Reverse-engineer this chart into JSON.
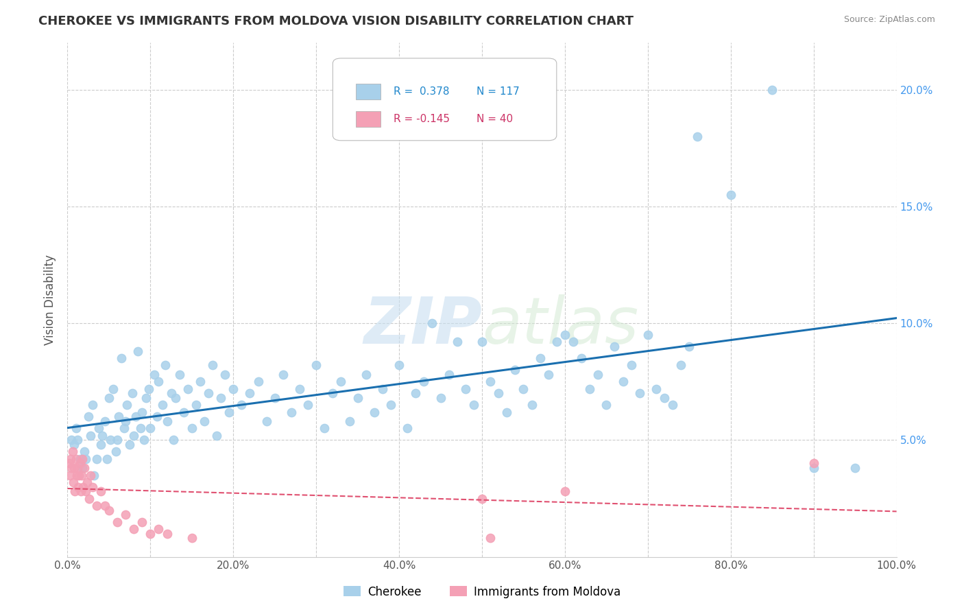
{
  "title": "CHEROKEE VS IMMIGRANTS FROM MOLDOVA VISION DISABILITY CORRELATION CHART",
  "source": "Source: ZipAtlas.com",
  "ylabel": "Vision Disability",
  "xlim": [
    0,
    1.0
  ],
  "ylim": [
    0,
    0.22
  ],
  "xtick_labels": [
    "0.0%",
    "",
    "20.0%",
    "",
    "40.0%",
    "",
    "60.0%",
    "",
    "80.0%",
    "",
    "100.0%"
  ],
  "xtick_values": [
    0.0,
    0.1,
    0.2,
    0.3,
    0.4,
    0.5,
    0.6,
    0.7,
    0.8,
    0.9,
    1.0
  ],
  "ytick_labels": [
    "5.0%",
    "10.0%",
    "15.0%",
    "20.0%"
  ],
  "ytick_values": [
    0.05,
    0.1,
    0.15,
    0.2
  ],
  "cherokee_color": "#a8d0ea",
  "moldova_color": "#f4a0b5",
  "trendline_cherokee_color": "#1a6faf",
  "trendline_moldova_color": "#e05070",
  "watermark_color": "#d8e8f0",
  "background_color": "#ffffff",
  "grid_color": "#cccccc",
  "right_axis_color": "#4499ee",
  "cherokee_points": [
    [
      0.005,
      0.05
    ],
    [
      0.008,
      0.048
    ],
    [
      0.01,
      0.055
    ],
    [
      0.012,
      0.05
    ],
    [
      0.015,
      0.042
    ],
    [
      0.018,
      0.038
    ],
    [
      0.02,
      0.045
    ],
    [
      0.022,
      0.042
    ],
    [
      0.025,
      0.06
    ],
    [
      0.028,
      0.052
    ],
    [
      0.03,
      0.065
    ],
    [
      0.032,
      0.035
    ],
    [
      0.035,
      0.042
    ],
    [
      0.038,
      0.055
    ],
    [
      0.04,
      0.048
    ],
    [
      0.042,
      0.052
    ],
    [
      0.045,
      0.058
    ],
    [
      0.048,
      0.042
    ],
    [
      0.05,
      0.068
    ],
    [
      0.052,
      0.05
    ],
    [
      0.055,
      0.072
    ],
    [
      0.058,
      0.045
    ],
    [
      0.06,
      0.05
    ],
    [
      0.062,
      0.06
    ],
    [
      0.065,
      0.085
    ],
    [
      0.068,
      0.055
    ],
    [
      0.07,
      0.058
    ],
    [
      0.072,
      0.065
    ],
    [
      0.075,
      0.048
    ],
    [
      0.078,
      0.07
    ],
    [
      0.08,
      0.052
    ],
    [
      0.082,
      0.06
    ],
    [
      0.085,
      0.088
    ],
    [
      0.088,
      0.055
    ],
    [
      0.09,
      0.062
    ],
    [
      0.092,
      0.05
    ],
    [
      0.095,
      0.068
    ],
    [
      0.098,
      0.072
    ],
    [
      0.1,
      0.055
    ],
    [
      0.105,
      0.078
    ],
    [
      0.108,
      0.06
    ],
    [
      0.11,
      0.075
    ],
    [
      0.115,
      0.065
    ],
    [
      0.118,
      0.082
    ],
    [
      0.12,
      0.058
    ],
    [
      0.125,
      0.07
    ],
    [
      0.128,
      0.05
    ],
    [
      0.13,
      0.068
    ],
    [
      0.135,
      0.078
    ],
    [
      0.14,
      0.062
    ],
    [
      0.145,
      0.072
    ],
    [
      0.15,
      0.055
    ],
    [
      0.155,
      0.065
    ],
    [
      0.16,
      0.075
    ],
    [
      0.165,
      0.058
    ],
    [
      0.17,
      0.07
    ],
    [
      0.175,
      0.082
    ],
    [
      0.18,
      0.052
    ],
    [
      0.185,
      0.068
    ],
    [
      0.19,
      0.078
    ],
    [
      0.195,
      0.062
    ],
    [
      0.2,
      0.072
    ],
    [
      0.21,
      0.065
    ],
    [
      0.22,
      0.07
    ],
    [
      0.23,
      0.075
    ],
    [
      0.24,
      0.058
    ],
    [
      0.25,
      0.068
    ],
    [
      0.26,
      0.078
    ],
    [
      0.27,
      0.062
    ],
    [
      0.28,
      0.072
    ],
    [
      0.29,
      0.065
    ],
    [
      0.3,
      0.082
    ],
    [
      0.31,
      0.055
    ],
    [
      0.32,
      0.07
    ],
    [
      0.33,
      0.075
    ],
    [
      0.34,
      0.058
    ],
    [
      0.35,
      0.068
    ],
    [
      0.36,
      0.078
    ],
    [
      0.37,
      0.062
    ],
    [
      0.38,
      0.072
    ],
    [
      0.39,
      0.065
    ],
    [
      0.4,
      0.082
    ],
    [
      0.41,
      0.055
    ],
    [
      0.42,
      0.07
    ],
    [
      0.43,
      0.075
    ],
    [
      0.44,
      0.1
    ],
    [
      0.45,
      0.068
    ],
    [
      0.46,
      0.078
    ],
    [
      0.47,
      0.092
    ],
    [
      0.48,
      0.072
    ],
    [
      0.49,
      0.065
    ],
    [
      0.5,
      0.092
    ],
    [
      0.51,
      0.075
    ],
    [
      0.52,
      0.07
    ],
    [
      0.53,
      0.062
    ],
    [
      0.54,
      0.08
    ],
    [
      0.55,
      0.072
    ],
    [
      0.56,
      0.065
    ],
    [
      0.57,
      0.085
    ],
    [
      0.58,
      0.078
    ],
    [
      0.59,
      0.092
    ],
    [
      0.6,
      0.095
    ],
    [
      0.61,
      0.092
    ],
    [
      0.62,
      0.085
    ],
    [
      0.63,
      0.072
    ],
    [
      0.64,
      0.078
    ],
    [
      0.65,
      0.065
    ],
    [
      0.66,
      0.09
    ],
    [
      0.67,
      0.075
    ],
    [
      0.68,
      0.082
    ],
    [
      0.69,
      0.07
    ],
    [
      0.7,
      0.095
    ],
    [
      0.71,
      0.072
    ],
    [
      0.72,
      0.068
    ],
    [
      0.73,
      0.065
    ],
    [
      0.74,
      0.082
    ],
    [
      0.75,
      0.09
    ],
    [
      0.76,
      0.18
    ],
    [
      0.8,
      0.155
    ],
    [
      0.85,
      0.2
    ],
    [
      0.9,
      0.038
    ],
    [
      0.95,
      0.038
    ]
  ],
  "moldova_points": [
    [
      0.002,
      0.04
    ],
    [
      0.003,
      0.035
    ],
    [
      0.004,
      0.042
    ],
    [
      0.005,
      0.038
    ],
    [
      0.006,
      0.045
    ],
    [
      0.007,
      0.032
    ],
    [
      0.008,
      0.038
    ],
    [
      0.009,
      0.028
    ],
    [
      0.01,
      0.042
    ],
    [
      0.011,
      0.035
    ],
    [
      0.012,
      0.038
    ],
    [
      0.013,
      0.03
    ],
    [
      0.014,
      0.035
    ],
    [
      0.015,
      0.04
    ],
    [
      0.016,
      0.028
    ],
    [
      0.017,
      0.035
    ],
    [
      0.018,
      0.042
    ],
    [
      0.019,
      0.03
    ],
    [
      0.02,
      0.038
    ],
    [
      0.022,
      0.028
    ],
    [
      0.024,
      0.032
    ],
    [
      0.026,
      0.025
    ],
    [
      0.028,
      0.035
    ],
    [
      0.03,
      0.03
    ],
    [
      0.035,
      0.022
    ],
    [
      0.04,
      0.028
    ],
    [
      0.045,
      0.022
    ],
    [
      0.05,
      0.02
    ],
    [
      0.06,
      0.015
    ],
    [
      0.07,
      0.018
    ],
    [
      0.08,
      0.012
    ],
    [
      0.09,
      0.015
    ],
    [
      0.1,
      0.01
    ],
    [
      0.11,
      0.012
    ],
    [
      0.12,
      0.01
    ],
    [
      0.15,
      0.008
    ],
    [
      0.5,
      0.025
    ],
    [
      0.51,
      0.008
    ],
    [
      0.6,
      0.028
    ],
    [
      0.9,
      0.04
    ]
  ]
}
